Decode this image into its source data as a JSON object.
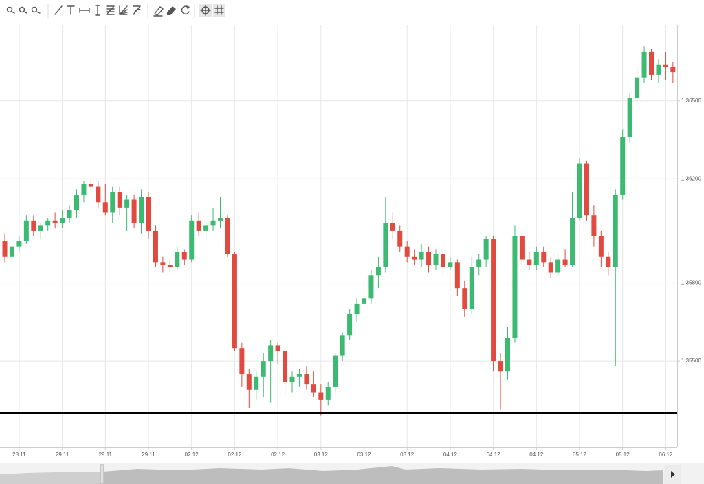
{
  "chart_data": {
    "type": "candlestick",
    "up_color": "#3cba72",
    "down_color": "#e04a3f",
    "grid": true,
    "ylim": [
      1.3517,
      1.3679
    ],
    "yticks": [
      {
        "value": 1.365,
        "label": "1.36500"
      },
      {
        "value": 1.362,
        "label": "1.36200"
      },
      {
        "value": 1.358,
        "label": "1.35800"
      },
      {
        "value": 1.355,
        "label": "1.35500"
      }
    ],
    "hline": 1.353,
    "categories": [
      null,
      null,
      "28.11",
      null,
      null,
      null,
      null,
      null,
      "29.11",
      null,
      null,
      null,
      null,
      null,
      "29.11",
      null,
      null,
      null,
      null,
      null,
      "29.11",
      null,
      null,
      null,
      null,
      null,
      "02.12",
      null,
      null,
      null,
      null,
      null,
      "02.12",
      null,
      null,
      null,
      null,
      null,
      "02.12",
      null,
      null,
      null,
      null,
      null,
      "03.12",
      null,
      null,
      null,
      null,
      null,
      "03.12",
      null,
      null,
      null,
      null,
      null,
      "03.12",
      null,
      null,
      null,
      null,
      null,
      "04.12",
      null,
      null,
      null,
      null,
      null,
      "04.12",
      null,
      null,
      null,
      null,
      null,
      "04.12",
      null,
      null,
      null,
      null,
      null,
      "05.12",
      null,
      null,
      null,
      null,
      null,
      "05.12",
      null,
      null,
      null,
      null,
      null,
      "06.12",
      null
    ],
    "open": [
      1.3596,
      1.359,
      1.3594,
      1.3596,
      1.3604,
      1.36,
      1.3602,
      1.3604,
      1.3603,
      1.3605,
      1.3608,
      1.3614,
      1.3618,
      1.3617,
      1.3611,
      1.3607,
      1.3615,
      1.3609,
      1.3612,
      1.3603,
      1.3613,
      1.36,
      1.3588,
      1.3587,
      1.3586,
      1.3592,
      1.3589,
      1.3604,
      1.36,
      1.3602,
      1.3604,
      1.3605,
      1.3591,
      1.3555,
      1.3545,
      1.3539,
      1.3544,
      1.355,
      1.3556,
      1.3554,
      1.3542,
      1.3544,
      1.3545,
      1.3541,
      1.3538,
      1.3535,
      1.354,
      1.3552,
      1.356,
      1.3568,
      1.3572,
      1.3574,
      1.3583,
      1.3586,
      1.3603,
      1.36,
      1.3594,
      1.359,
      1.3589,
      1.3592,
      1.3587,
      1.3591,
      1.3586,
      1.3588,
      1.3578,
      1.357,
      1.3586,
      1.3589,
      1.3597,
      1.355,
      1.3546,
      1.3559,
      1.3598,
      1.3589,
      1.3587,
      1.3592,
      1.3588,
      1.3584,
      1.3589,
      1.3587,
      1.3605,
      1.3626,
      1.3606,
      1.3598,
      1.359,
      1.3586,
      1.3614,
      1.3636,
      1.3651,
      1.3659,
      1.3669,
      1.366,
      1.3664,
      1.3663
    ],
    "high": [
      1.3599,
      1.3595,
      1.3598,
      1.3606,
      1.3606,
      1.3603,
      1.3605,
      1.3607,
      1.3608,
      1.361,
      1.3616,
      1.3619,
      1.362,
      1.3619,
      1.3618,
      1.3617,
      1.3617,
      1.3614,
      1.3614,
      1.3616,
      1.3615,
      1.3602,
      1.359,
      1.3589,
      1.3594,
      1.3593,
      1.3606,
      1.3607,
      1.3604,
      1.3609,
      1.3613,
      1.3606,
      1.3592,
      1.3557,
      1.3547,
      1.3546,
      1.3553,
      1.3558,
      1.3557,
      1.3555,
      1.3546,
      1.3547,
      1.3548,
      1.3546,
      1.3541,
      1.3542,
      1.3553,
      1.3561,
      1.357,
      1.3574,
      1.3576,
      1.3585,
      1.359,
      1.3613,
      1.3607,
      1.3602,
      1.3596,
      1.3593,
      1.3595,
      1.3594,
      1.3593,
      1.3593,
      1.359,
      1.3589,
      1.3581,
      1.359,
      1.3591,
      1.3598,
      1.3598,
      1.3553,
      1.3563,
      1.3602,
      1.36,
      1.3592,
      1.3594,
      1.3594,
      1.359,
      1.3591,
      1.3593,
      1.3615,
      1.3628,
      1.3627,
      1.361,
      1.36,
      1.3592,
      1.3616,
      1.3639,
      1.3653,
      1.3663,
      1.3671,
      1.367,
      1.3666,
      1.3669,
      1.3665
    ],
    "low": [
      1.3588,
      1.3587,
      1.3592,
      1.3595,
      1.3598,
      1.3597,
      1.36,
      1.3601,
      1.3601,
      1.3603,
      1.3605,
      1.3611,
      1.3615,
      1.3609,
      1.3606,
      1.3603,
      1.3606,
      1.36,
      1.3601,
      1.3599,
      1.3597,
      1.3586,
      1.3584,
      1.3584,
      1.3585,
      1.3587,
      1.3588,
      1.3598,
      1.3597,
      1.36,
      1.3601,
      1.359,
      1.3554,
      1.354,
      1.3532,
      1.3535,
      1.3536,
      1.3534,
      1.3549,
      1.3537,
      1.3538,
      1.354,
      1.3539,
      1.3536,
      1.3529,
      1.3533,
      1.3538,
      1.355,
      1.3558,
      1.3565,
      1.3568,
      1.3572,
      1.3578,
      1.3584,
      1.3597,
      1.3592,
      1.3588,
      1.3587,
      1.3586,
      1.3584,
      1.3585,
      1.3583,
      1.3585,
      1.3575,
      1.3567,
      1.3568,
      1.3583,
      1.3586,
      1.3546,
      1.3531,
      1.3543,
      1.3557,
      1.3587,
      1.3585,
      1.3585,
      1.3586,
      1.3582,
      1.3583,
      1.3586,
      1.3586,
      1.3604,
      1.3604,
      1.3594,
      1.3586,
      1.3583,
      1.3548,
      1.3612,
      1.3634,
      1.3649,
      1.3657,
      1.3658,
      1.3657,
      1.3658,
      1.3657
    ],
    "close": [
      1.359,
      1.3594,
      1.3596,
      1.3604,
      1.36,
      1.3602,
      1.3604,
      1.3603,
      1.3605,
      1.3608,
      1.3614,
      1.3618,
      1.3617,
      1.3611,
      1.3607,
      1.3615,
      1.3609,
      1.3612,
      1.3603,
      1.3613,
      1.36,
      1.3588,
      1.3587,
      1.3586,
      1.3592,
      1.3589,
      1.3604,
      1.36,
      1.3602,
      1.3604,
      1.3605,
      1.3591,
      1.3555,
      1.3545,
      1.3539,
      1.3544,
      1.355,
      1.3556,
      1.3554,
      1.3542,
      1.3544,
      1.3545,
      1.3541,
      1.3538,
      1.3535,
      1.354,
      1.3552,
      1.356,
      1.3568,
      1.3572,
      1.3574,
      1.3583,
      1.3586,
      1.3603,
      1.36,
      1.3594,
      1.359,
      1.3589,
      1.3592,
      1.3587,
      1.3591,
      1.3586,
      1.3588,
      1.3578,
      1.357,
      1.3586,
      1.3589,
      1.3597,
      1.355,
      1.3546,
      1.3559,
      1.3598,
      1.3589,
      1.3587,
      1.3592,
      1.3588,
      1.3584,
      1.3589,
      1.3587,
      1.3605,
      1.3626,
      1.3606,
      1.3598,
      1.359,
      1.3586,
      1.3614,
      1.3636,
      1.3651,
      1.3659,
      1.3669,
      1.366,
      1.3664,
      1.3663,
      1.3661
    ]
  }
}
